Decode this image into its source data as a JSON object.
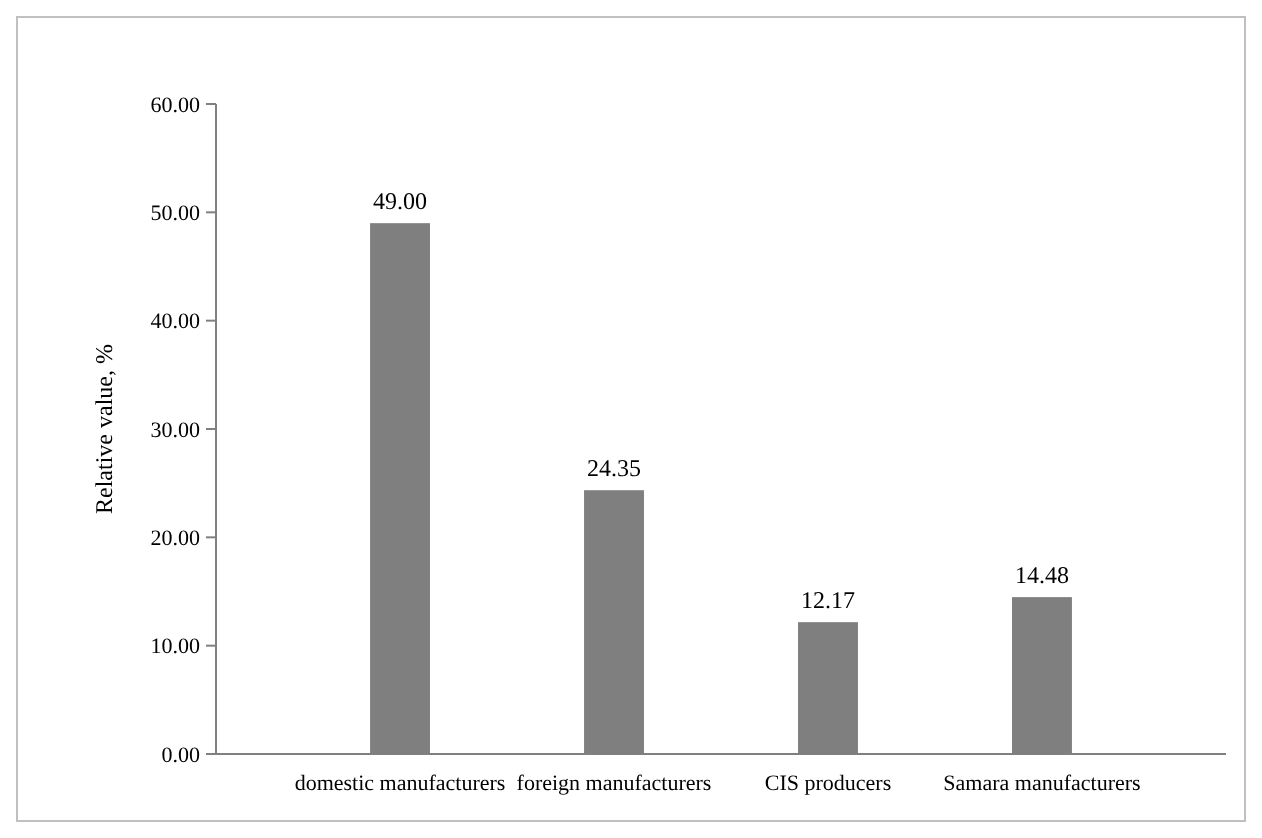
{
  "chart_data": {
    "type": "bar",
    "ylabel": "Relative value, %",
    "categories": [
      "domestic manufacturers",
      "foreign manufacturers",
      "CIS producers",
      "Samara manufacturers"
    ],
    "values": [
      49.0,
      24.35,
      12.17,
      14.48
    ],
    "color": "#7f7f7f",
    "value_labels": [
      "49.00",
      "24.35",
      "12.17",
      "14.48"
    ],
    "ylim": [
      0,
      60
    ],
    "yticks": [
      {
        "value": 0,
        "label": "0.00"
      },
      {
        "value": 10,
        "label": "10.00"
      },
      {
        "value": 20,
        "label": "20.00"
      },
      {
        "value": 30,
        "label": "30.00"
      },
      {
        "value": 40,
        "label": "40.00"
      },
      {
        "value": 50,
        "label": "50.00"
      },
      {
        "value": 60,
        "label": "60.00"
      }
    ],
    "grid": false
  }
}
